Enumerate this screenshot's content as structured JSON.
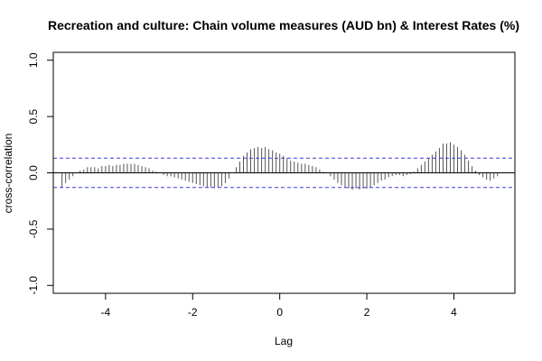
{
  "chart_data": {
    "type": "bar",
    "title": "Recreation and culture: Chain volume measures (AUD bn) & Interest Rates (%)",
    "xlabel": "Lag",
    "ylabel": "cross-correlation",
    "xlim": [
      -5.2,
      5.4
    ],
    "ylim": [
      -1.07,
      1.07
    ],
    "x_ticks": [
      "-4",
      "-2",
      "0",
      "2",
      "4"
    ],
    "y_ticks": [
      "-1.0",
      "-0.5",
      "0.0",
      "0.5",
      "1.0"
    ],
    "confidence_band": [
      -0.13,
      0.13
    ],
    "confidence_color": "#3b3bdb",
    "bar_color": "#555555",
    "x": [
      -5.0,
      -4.9167,
      -4.8333,
      -4.75,
      -4.6667,
      -4.5833,
      -4.5,
      -4.4167,
      -4.3333,
      -4.25,
      -4.1667,
      -4.0833,
      -4.0,
      -3.9167,
      -3.8333,
      -3.75,
      -3.6667,
      -3.5833,
      -3.5,
      -3.4167,
      -3.3333,
      -3.25,
      -3.1667,
      -3.0833,
      -3.0,
      -2.9167,
      -2.8333,
      -2.75,
      -2.6667,
      -2.5833,
      -2.5,
      -2.4167,
      -2.3333,
      -2.25,
      -2.1667,
      -2.0833,
      -2.0,
      -1.9167,
      -1.8333,
      -1.75,
      -1.6667,
      -1.5833,
      -1.5,
      -1.4167,
      -1.3333,
      -1.25,
      -1.1667,
      -1.0833,
      -1.0,
      -0.9167,
      -0.8333,
      -0.75,
      -0.6667,
      -0.5833,
      -0.5,
      -0.4167,
      -0.3333,
      -0.25,
      -0.1667,
      -0.0833,
      0.0,
      0.0833,
      0.1667,
      0.25,
      0.3333,
      0.4167,
      0.5,
      0.5833,
      0.6667,
      0.75,
      0.8333,
      0.9167,
      1.0,
      1.0833,
      1.1667,
      1.25,
      1.3333,
      1.4167,
      1.5,
      1.5833,
      1.6667,
      1.75,
      1.8333,
      1.9167,
      2.0,
      2.0833,
      2.1667,
      2.25,
      2.3333,
      2.4167,
      2.5,
      2.5833,
      2.6667,
      2.75,
      2.8333,
      2.9167,
      3.0,
      3.0833,
      3.1667,
      3.25,
      3.3333,
      3.4167,
      3.5,
      3.5833,
      3.6667,
      3.75,
      3.8333,
      3.9167,
      4.0,
      4.0833,
      4.1667,
      4.25,
      4.3333,
      4.4167,
      4.5,
      4.5833,
      4.6667,
      4.75,
      4.8333,
      4.9167,
      5.0
    ],
    "values": [
      -0.13,
      -0.09,
      -0.06,
      -0.03,
      0.0,
      0.02,
      0.03,
      0.05,
      0.05,
      0.05,
      0.04,
      0.06,
      0.06,
      0.07,
      0.06,
      0.07,
      0.07,
      0.08,
      0.08,
      0.08,
      0.08,
      0.07,
      0.06,
      0.05,
      0.04,
      0.02,
      0.01,
      0.0,
      -0.02,
      -0.03,
      -0.03,
      -0.04,
      -0.05,
      -0.06,
      -0.07,
      -0.08,
      -0.09,
      -0.1,
      -0.11,
      -0.12,
      -0.13,
      -0.13,
      -0.13,
      -0.13,
      -0.12,
      -0.09,
      -0.05,
      0.0,
      0.05,
      0.1,
      0.15,
      0.18,
      0.21,
      0.22,
      0.23,
      0.22,
      0.23,
      0.21,
      0.2,
      0.18,
      0.17,
      0.15,
      0.13,
      0.11,
      0.1,
      0.09,
      0.08,
      0.08,
      0.07,
      0.06,
      0.05,
      0.03,
      0.01,
      0.0,
      -0.03,
      -0.06,
      -0.09,
      -0.11,
      -0.13,
      -0.14,
      -0.15,
      -0.14,
      -0.15,
      -0.14,
      -0.14,
      -0.13,
      -0.11,
      -0.09,
      -0.07,
      -0.06,
      -0.04,
      -0.03,
      -0.02,
      -0.02,
      -0.03,
      -0.02,
      -0.01,
      0.01,
      0.04,
      0.07,
      0.1,
      0.13,
      0.16,
      0.19,
      0.22,
      0.26,
      0.26,
      0.27,
      0.25,
      0.23,
      0.2,
      0.16,
      0.11,
      0.06,
      0.02,
      -0.02,
      -0.04,
      -0.06,
      -0.07,
      -0.05,
      -0.03
    ]
  }
}
